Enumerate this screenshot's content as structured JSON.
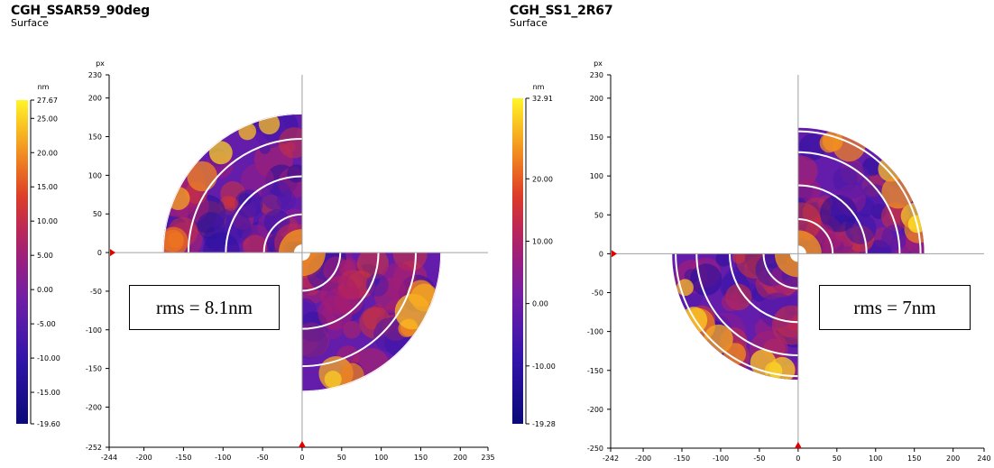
{
  "chart_data": [
    {
      "type": "heatmap",
      "title": "CGH_SSAR59_90deg",
      "subtitle": "Surface",
      "colorbar": {
        "unit": "nm",
        "ticks": [
          "27.67",
          "25.00",
          "20.00",
          "15.00",
          "10.00",
          "5.00",
          "0.00",
          "-5.00",
          "-10.00",
          "-15.00",
          "-19.60"
        ],
        "tick_values": [
          27.67,
          25,
          20,
          15,
          10,
          5,
          0,
          -5,
          -10,
          -15,
          -19.6
        ],
        "range": [
          -19.6,
          27.67
        ]
      },
      "y_axis": {
        "unit": "px",
        "ticks": [
          "230",
          "200",
          "150",
          "100",
          "50",
          "0",
          "-50",
          "-100",
          "-150",
          "-200",
          "-252"
        ],
        "tick_values": [
          230,
          200,
          150,
          100,
          50,
          0,
          -50,
          -100,
          -150,
          -200,
          -252
        ],
        "range": [
          -252,
          230
        ]
      },
      "x_axis": {
        "ticks": [
          "-244",
          "-200",
          "-150",
          "-100",
          "-50",
          "0",
          "50",
          "100",
          "150",
          "200",
          "235"
        ],
        "tick_values": [
          -244,
          -200,
          -150,
          -100,
          -50,
          0,
          50,
          100,
          150,
          200,
          235
        ],
        "range": [
          -244,
          235
        ]
      },
      "quadrants": [
        "top-left",
        "bottom-right"
      ],
      "annotation": "rms = 8.1nm"
    },
    {
      "type": "heatmap",
      "title": "CGH_SS1_2R67",
      "subtitle": "Surface",
      "colorbar": {
        "unit": "nm",
        "ticks": [
          "32.91",
          "20.00",
          "10.00",
          "0.00",
          "-10.00",
          "-19.28"
        ],
        "tick_values": [
          32.91,
          20,
          10,
          0,
          -10,
          -19.28
        ],
        "range": [
          -19.28,
          32.91
        ]
      },
      "y_axis": {
        "unit": "px",
        "ticks": [
          "230",
          "200",
          "150",
          "100",
          "50",
          "0",
          "-50",
          "-100",
          "-150",
          "-200",
          "-250"
        ],
        "tick_values": [
          230,
          200,
          150,
          100,
          50,
          0,
          -50,
          -100,
          -150,
          -200,
          -250
        ],
        "range": [
          -250,
          230
        ]
      },
      "x_axis": {
        "ticks": [
          "-242",
          "-200",
          "-150",
          "-100",
          "-50",
          "0",
          "50",
          "100",
          "150",
          "200",
          "240"
        ],
        "tick_values": [
          -242,
          -200,
          -150,
          -100,
          -50,
          0,
          50,
          100,
          150,
          200,
          240
        ],
        "range": [
          -242,
          240
        ]
      },
      "quadrants": [
        "top-right",
        "bottom-left"
      ],
      "annotation": "rms = 7nm"
    }
  ]
}
